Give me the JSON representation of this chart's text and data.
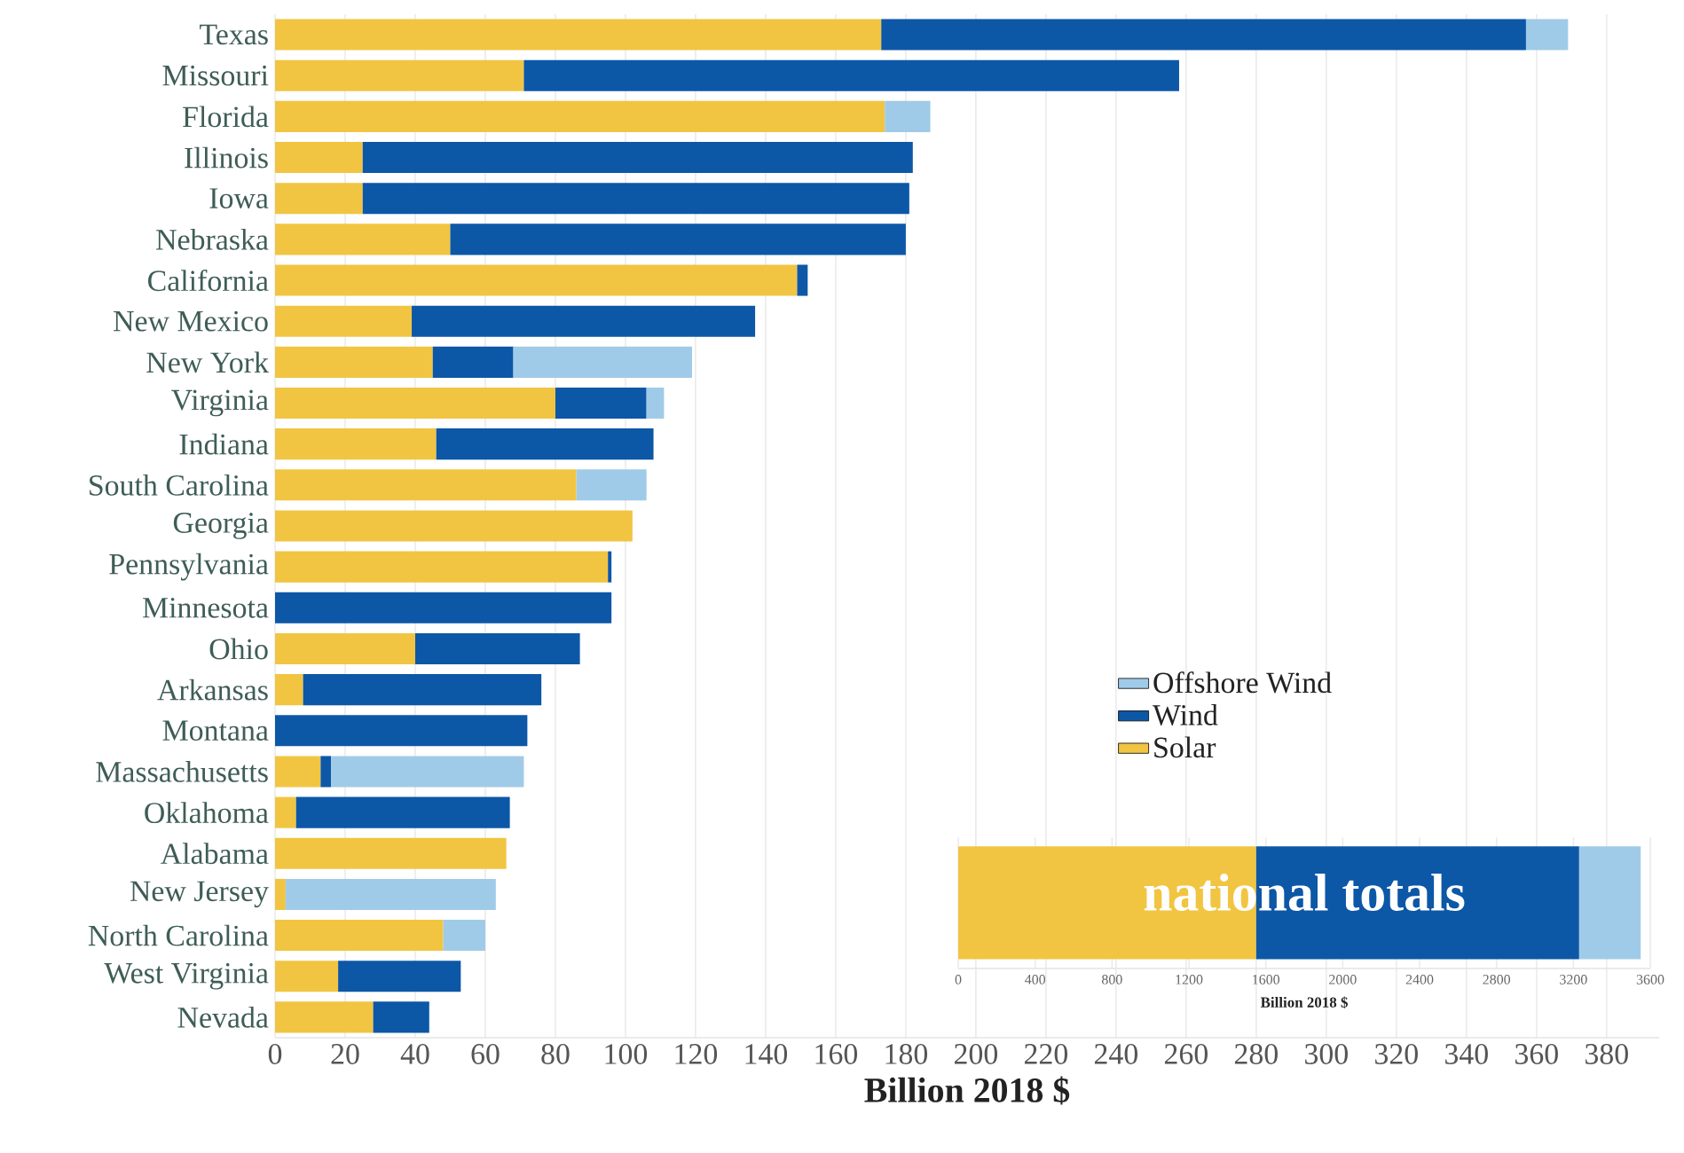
{
  "chart_data": [
    {
      "type": "bar",
      "orientation": "horizontal",
      "stacked": true,
      "xlabel": "Billion 2018 $",
      "grid": "x",
      "legend": "right",
      "categories": [
        "Texas",
        "Missouri",
        "Florida",
        "Illinois",
        "Iowa",
        "Nebraska",
        "California",
        "New Mexico",
        "New York",
        "Virginia",
        "Indiana",
        "South Carolina",
        "Georgia",
        "Pennsylvania",
        "Minnesota",
        "Ohio",
        "Arkansas",
        "Montana",
        "Massachusetts",
        "Oklahoma",
        "Alabama",
        "New Jersey",
        "North Carolina",
        "West Virginia",
        "Nevada"
      ],
      "series": [
        {
          "name": "Solar",
          "color": "#f1c542",
          "values": [
            173,
            71,
            174,
            25,
            25,
            50,
            149,
            39,
            45,
            80,
            46,
            86,
            102,
            95,
            null,
            40,
            8,
            null,
            13,
            6,
            66,
            3,
            48,
            18,
            28
          ]
        },
        {
          "name": "Wind",
          "color": "#0d57a7",
          "values": [
            184,
            187,
            null,
            157,
            156,
            130,
            3,
            98,
            23,
            26,
            62,
            null,
            null,
            1,
            96,
            47,
            68,
            72,
            3,
            61,
            null,
            null,
            null,
            35,
            16
          ]
        },
        {
          "name": "Offshore Wind",
          "color": "#a0cbe8",
          "values": [
            12,
            null,
            13,
            null,
            null,
            null,
            null,
            null,
            51,
            5,
            null,
            20,
            null,
            null,
            null,
            null,
            null,
            null,
            55,
            null,
            null,
            60,
            12,
            null,
            null
          ]
        }
      ],
      "xlim": [
        0,
        395
      ],
      "xticks": [
        0,
        20,
        40,
        60,
        80,
        100,
        120,
        140,
        160,
        180,
        200,
        220,
        240,
        260,
        280,
        300,
        320,
        340,
        360,
        380
      ]
    },
    {
      "type": "bar",
      "orientation": "horizontal",
      "stacked": true,
      "title": "national totals",
      "xlabel": "Billion 2018 $",
      "grid": "x",
      "categories": [
        null
      ],
      "series": [
        {
          "color": "#f1c542",
          "values": [
            1550
          ]
        },
        {
          "color": "#0d57a7",
          "values": [
            1680
          ]
        },
        {
          "color": "#a0cbe8",
          "values": [
            320
          ]
        }
      ],
      "xlim": [
        0,
        3600
      ],
      "xticks": [
        0,
        400,
        800,
        1200,
        1600,
        2000,
        2400,
        2800,
        3200,
        3600
      ]
    }
  ]
}
